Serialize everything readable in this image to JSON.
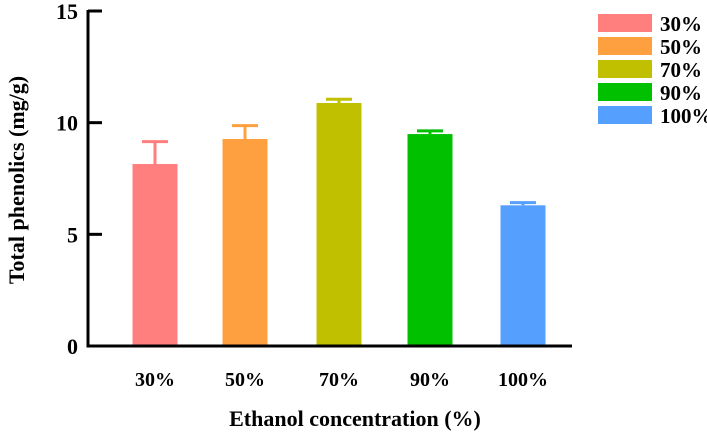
{
  "chart_data": {
    "type": "bar",
    "title": "",
    "xlabel": "Ethanol concentration (%)",
    "ylabel": "Total phenolics (mg/g)",
    "ylim": [
      0,
      15
    ],
    "yticks": [
      "0",
      "5",
      "10",
      "15"
    ],
    "categories": [
      "30%",
      "50%",
      "70%",
      "90%",
      "100%"
    ],
    "values": [
      8.15,
      9.27,
      10.88,
      9.49,
      6.3
    ],
    "error_upper": [
      1.0,
      0.6,
      0.17,
      0.14,
      0.12
    ],
    "colors": [
      "#ff7f7f",
      "#ffa040",
      "#c0c000",
      "#00c000",
      "#55a0ff"
    ],
    "legend": [
      "30%",
      "50%",
      "70%",
      "90%",
      "100%"
    ],
    "legend_position": "top-right",
    "grid": false
  }
}
